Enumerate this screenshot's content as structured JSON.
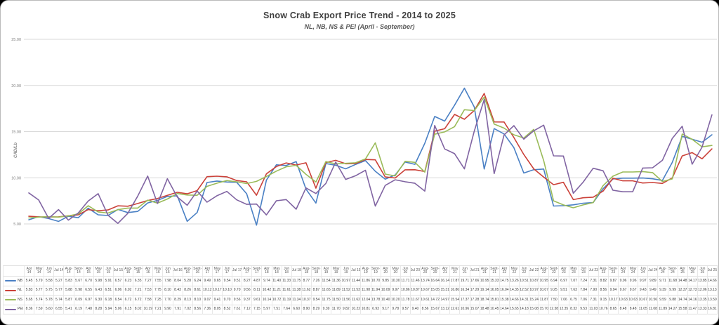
{
  "header": {
    "title": "Snow Crab Export Price Trend - 2014 to 2025",
    "subtitle": "NL, NB, NS & PEI (April - September)"
  },
  "chart": {
    "y_axis_label": "CAD/Lb",
    "y_ticks": [
      25.0,
      20.0,
      15.0,
      10.0,
      5.0
    ],
    "grid_color": "#d9d9d9",
    "tick_text_color": "#808080"
  },
  "chart_data": {
    "type": "line",
    "title": "Snow Crab Export Price Trend - 2014 to 2025",
    "subtitle": "NL, NB, NS & PEI (April - September)",
    "ylabel": "CAD/Lb",
    "ylim": [
      0,
      25
    ],
    "grid": true,
    "legend_position": "table-left",
    "categories": [
      "Apr 14",
      "May 14",
      "Jun 14",
      "Jul 14",
      "Aug-14",
      "Sept-14",
      "Apr 15",
      "May 15",
      "Jun 15",
      "Jul 15",
      "Aug-15",
      "Sept-15",
      "Apr 16",
      "May 16",
      "Jun 16",
      "Jul 16",
      "Aug-16",
      "Sept-16",
      "Apr 17",
      "May 17",
      "Jun 17",
      "Jul 17",
      "Aug-17",
      "Sept-17",
      "Apr 18",
      "May 18",
      "Jun 18",
      "Jul 18",
      "Aug-18",
      "Sept-18",
      "Apr 19",
      "May 19",
      "Jun 19",
      "Jul 19",
      "Aug-19",
      "Sept-19",
      "Apr 20",
      "May 20",
      "Jun 20",
      "Jul 20",
      "Aug-20",
      "Sept-20",
      "Apr 21",
      "May 21",
      "Jun 21",
      "Jul 21",
      "Aug-21",
      "Sept-21",
      "Apr 22",
      "May 22",
      "Jun 22",
      "Jul 22",
      "Aug-22",
      "Sept-22",
      "Apr 23",
      "May 23",
      "Jun 23",
      "Jul 23",
      "Aug-23",
      "Sept-23",
      "Apr 24",
      "May 24",
      "Jun 24",
      "Jul 24",
      "Aug-24",
      "Sept-24",
      "Apr 25",
      "May 25",
      "Jun 25",
      "Jul 25"
    ],
    "series": [
      {
        "name": "NB",
        "color": "#4a80c4",
        "values": [
          5.45,
          5.79,
          5.58,
          5.27,
          5.83,
          5.67,
          6.7,
          5.98,
          5.91,
          6.57,
          6.23,
          6.35,
          7.27,
          7.55,
          7.98,
          8.04,
          5.28,
          6.24,
          9.49,
          9.65,
          9.54,
          9.51,
          8.27,
          4.87,
          9.74,
          11.4,
          11.33,
          11.75,
          8.77,
          7.26,
          11.54,
          11.36,
          10.97,
          11.44,
          11.86,
          10.7,
          9.85,
          10.3,
          11.71,
          11.46,
          13.74,
          16.64,
          16.14,
          17.87,
          19.71,
          17.66,
          10.95,
          15.33,
          14.75,
          13.26,
          10.51,
          10.87,
          10.95,
          6.94,
          6.97,
          7.07,
          7.24,
          7.31,
          8.82,
          9.87,
          9.96,
          9.96,
          9.97,
          9.89,
          9.71,
          11.68,
          14.48,
          14.17,
          13.85,
          14.66
        ]
      },
      {
        "name": "NL",
        "color": "#cb4139",
        "values": [
          5.83,
          5.77,
          5.75,
          5.77,
          5.88,
          5.98,
          6.55,
          6.43,
          6.51,
          6.96,
          6.92,
          7.21,
          7.53,
          7.75,
          8.1,
          8.43,
          8.26,
          8.61,
          10.12,
          10.17,
          10.1,
          9.7,
          9.56,
          8.11,
          10.42,
          11.21,
          11.61,
          11.38,
          11.62,
          8.87,
          11.65,
          11.89,
          11.52,
          11.53,
          11.98,
          11.94,
          10.09,
          9.97,
          10.86,
          10.87,
          10.67,
          15.05,
          15.31,
          16.86,
          16.34,
          17.29,
          19.14,
          16.05,
          16.04,
          14.35,
          12.52,
          10.97,
          10.07,
          9.25,
          9.51,
          7.63,
          7.84,
          7.9,
          8.56,
          9.94,
          9.67,
          9.67,
          9.43,
          9.49,
          9.39,
          9.99,
          12.37,
          12.73,
          12.06,
          13.13
        ]
      },
      {
        "name": "NS",
        "color": "#9abb59",
        "values": [
          5.65,
          5.74,
          5.78,
          5.74,
          5.87,
          6.09,
          6.97,
          6.3,
          6.18,
          6.54,
          6.72,
          6.72,
          7.58,
          7.25,
          7.7,
          8.29,
          8.13,
          8.1,
          9.07,
          9.41,
          9.7,
          9.56,
          9.37,
          9.61,
          10.14,
          10.72,
          11.19,
          11.34,
          10.37,
          9.54,
          11.75,
          11.5,
          11.56,
          11.62,
          12.04,
          13.78,
          10.4,
          10.2,
          11.78,
          11.67,
          10.61,
          14.72,
          14.97,
          15.54,
          17.37,
          17.28,
          18.74,
          15.81,
          15.38,
          14.66,
          14.31,
          15.24,
          11.87,
          7.5,
          7.06,
          6.75,
          7.06,
          7.31,
          9.15,
          10.17,
          10.63,
          10.63,
          10.67,
          10.56,
          9.59,
          9.88,
          14.74,
          14.16,
          13.35,
          13.5
        ]
      },
      {
        "name": "PEI",
        "color": "#8064a2",
        "values": [
          8.36,
          7.59,
          5.6,
          6.55,
          5.41,
          6.19,
          7.48,
          8.28,
          5.94,
          5.06,
          6.15,
          8.02,
          10.19,
          7.21,
          9.9,
          7.91,
          7.02,
          8.56,
          7.36,
          8.05,
          8.52,
          7.61,
          7.12,
          7.15,
          5.97,
          7.51,
          7.64,
          6.6,
          8.9,
          8.29,
          9.39,
          11.7,
          9.82,
          10.22,
          10.81,
          6.93,
          9.17,
          9.78,
          9.57,
          9.4,
          8.56,
          15.67,
          13.12,
          12.61,
          10.96,
          15.07,
          18.48,
          10.45,
          14.64,
          15.65,
          14.18,
          15.08,
          15.7,
          12.38,
          12.35,
          8.32,
          9.53,
          11.03,
          10.76,
          8.65,
          8.48,
          8.48,
          11.05,
          11.08,
          11.89,
          14.27,
          15.58,
          11.47,
          13.33,
          16.81
        ]
      }
    ]
  }
}
